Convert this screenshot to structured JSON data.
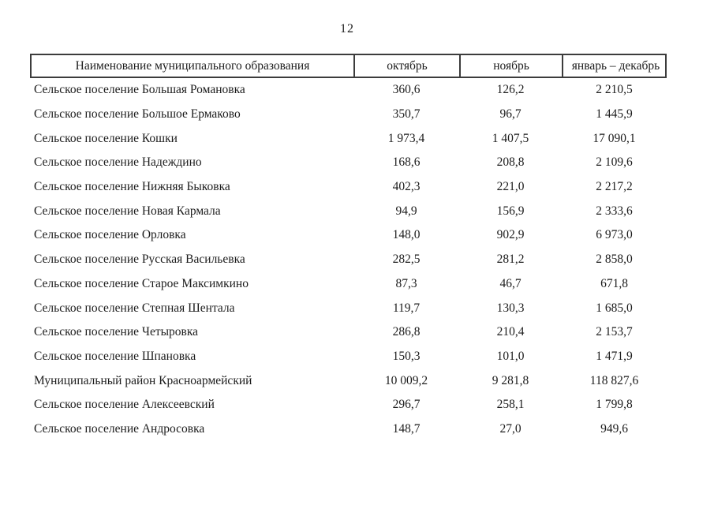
{
  "page": {
    "number": "12"
  },
  "table": {
    "headers": [
      "Наименование муниципального образования",
      "октябрь",
      "ноябрь",
      "январь – декабрь"
    ],
    "rows": [
      {
        "name": "Сельское поселение Большая Романовка",
        "values": [
          "360,6",
          "126,2",
          "2 210,5"
        ]
      },
      {
        "name": "Сельское поселение Большое Ермаково",
        "values": [
          "350,7",
          "96,7",
          "1 445,9"
        ]
      },
      {
        "name": "Сельское поселение Кошки",
        "values": [
          "1 973,4",
          "1 407,5",
          "17 090,1"
        ]
      },
      {
        "name": "Сельское поселение Надеждино",
        "values": [
          "168,6",
          "208,8",
          "2 109,6"
        ]
      },
      {
        "name": "Сельское поселение Нижняя Быковка",
        "values": [
          "402,3",
          "221,0",
          "2 217,2"
        ]
      },
      {
        "name": "Сельское поселение Новая Кармала",
        "values": [
          "94,9",
          "156,9",
          "2 333,6"
        ]
      },
      {
        "name": "Сельское поселение Орловка",
        "values": [
          "148,0",
          "902,9",
          "6 973,0"
        ]
      },
      {
        "name": "Сельское поселение Русская Васильевка",
        "values": [
          "282,5",
          "281,2",
          "2 858,0"
        ]
      },
      {
        "name": "Сельское поселение Старое Максимкино",
        "values": [
          "87,3",
          "46,7",
          "671,8"
        ]
      },
      {
        "name": "Сельское поселение Степная Шентала",
        "values": [
          "119,7",
          "130,3",
          "1 685,0"
        ]
      },
      {
        "name": "Сельское поселение Четыровка",
        "values": [
          "286,8",
          "210,4",
          "2 153,7"
        ]
      },
      {
        "name": "Сельское поселение Шпановка",
        "values": [
          "150,3",
          "101,0",
          "1 471,9"
        ]
      },
      {
        "name": "Муниципальный район Красноармейский",
        "values": [
          "10 009,2",
          "9 281,8",
          "118 827,6"
        ]
      },
      {
        "name": "Сельское поселение Алексеевский",
        "values": [
          "296,7",
          "258,1",
          "1 799,8"
        ]
      },
      {
        "name": "Сельское поселение Андросовка",
        "values": [
          "148,7",
          "27,0",
          "949,6"
        ]
      }
    ]
  },
  "colors": {
    "text": "#1c1c1c",
    "border": "#3c3c3c",
    "background": "#ffffff"
  }
}
